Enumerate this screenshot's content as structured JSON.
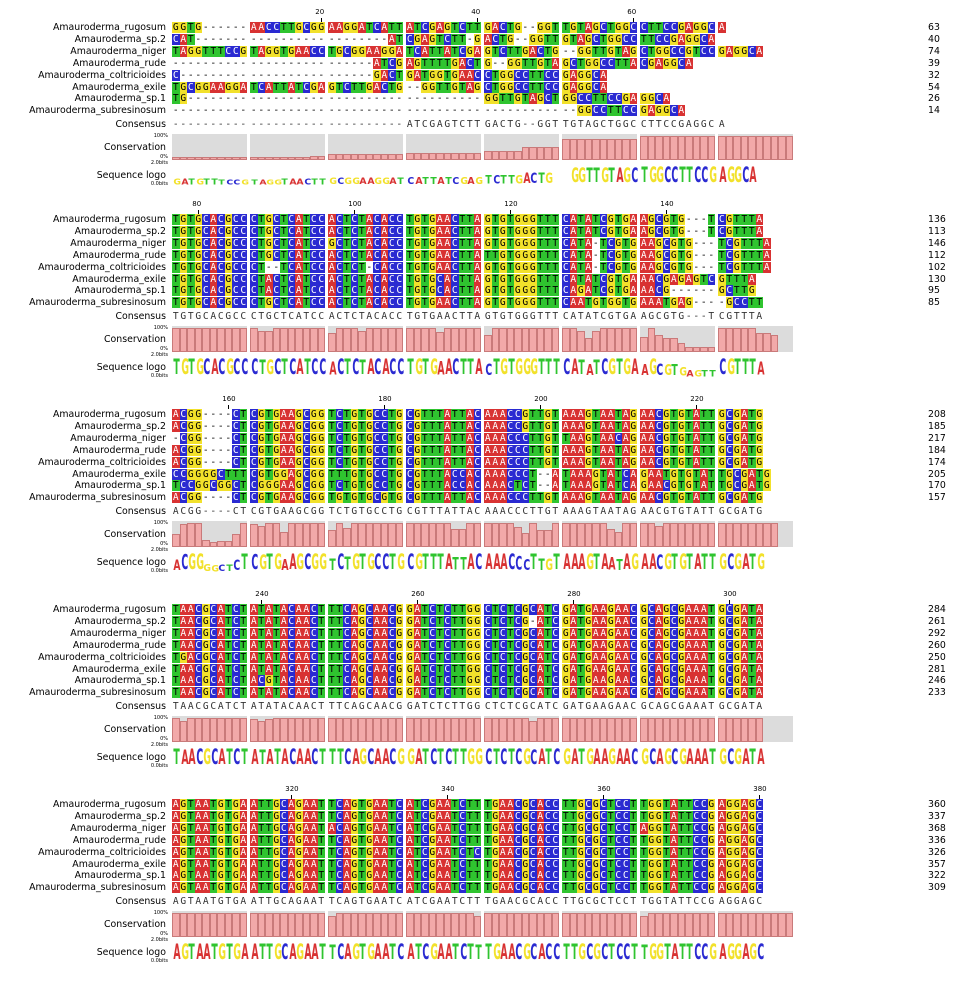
{
  "names": [
    "Amauroderma_rugosum",
    "Amauroderma_sp.2",
    "Amauroderma_niger",
    "Amauroderma_rude",
    "Amauroderma_coltricioides",
    "Amauroderma_exile",
    "Amauroderma_sp.1",
    "Amauroderma_subresinosum"
  ],
  "labels": {
    "consensus": "Consensus",
    "conservation": "Conservation",
    "logo": "Sequence logo",
    "pct100": "100%",
    "pct0": "0%",
    "bits": "2.0bits",
    "bits0": "0.0bits"
  },
  "colors": {
    "A": "#d83232",
    "C": "#2a2ad1",
    "G": "#f2e12b",
    "T": "#2fc42f"
  },
  "blocks": [
    {
      "ticks": [
        20,
        40,
        60
      ],
      "seqs": [
        "GGTG------AACCTTGCGGAAGGATCATTATCGAGTCTTGACTG--GGTTGTAGCTGGCCTTCCGAGGCA",
        "CAT-------------------------ATCGAGTCTT-GACTG--GGTTGTAGCTGGCCTTCCGAGGCA",
        "TAGGTTTCCGTAGGTGAACCTGCGGAAGGATCATTATCGAGTCTTGACTG--GGTTGTAGCTGGCCGTCCGAGGCA",
        "--------------------------ATCGAGTTTTGACTG--GGTTGTAGCTGGCCTTACGAGGCA",
        "C-------------------------GACTGATGGTGAACCTGGCCTTCCGAGGCA",
        "TGCGGAAGGATCATTATCGAGTCTTGACTG--GGTTGTAGCTGGCCTTCCGAGGCA",
        "TG--------------------------------------GGTTGTAGCTGGCCTTCCGAGGCA",
        "----------------------------------------------------GGCCTTCCGAGGCA"
      ],
      "ends": [
        63,
        40,
        74,
        39,
        32,
        54,
        26,
        14
      ],
      "consensus": "------------------------------ATCGAGTCTTGACTG--GGTTGTAGCTGGCCTTCCGAGGCA",
      "logo": "GATGTTTCCGTAGGTAACTTGCGGAAGGATCATTATCGAGTCTTGACTG--GGTTGTAGCTGGCCTTCCGAGGCA",
      "conservation": [
        15,
        15,
        15,
        15,
        15,
        15,
        12,
        12,
        12,
        12,
        12,
        12,
        12,
        12,
        15,
        15,
        14,
        15,
        18,
        16,
        25,
        25,
        25,
        25,
        25,
        25,
        25,
        25,
        25,
        25,
        30,
        30,
        30,
        30,
        30,
        30,
        30,
        30,
        30,
        30,
        40,
        40,
        40,
        40,
        40,
        55,
        55,
        55,
        55,
        55,
        90,
        90,
        90,
        90,
        90,
        90,
        90,
        90,
        90,
        90,
        100,
        100,
        100,
        100,
        100,
        100,
        100,
        100,
        100,
        100,
        100,
        100,
        100,
        100,
        100,
        100,
        100,
        100,
        100,
        100
      ]
    },
    {
      "ticks": [
        80,
        100,
        120,
        140
      ],
      "seqs": [
        "TGTGCACGCCCTGCTCATCCACTCTACACCTGTGAACTTAGTGTGGGTTTCATATCGTGAAGCGTG---TCGTTTA",
        "TGTGCACGCCCTGCTCATCCACTCTACACCTGTGAACTTAGTGTGGGTTTCATATCGTGAAGCGTG---TCGTTTA",
        "TGTGCACGCCCTGCTCATCCGCTCTACACCTGTGAACTTAGTGTGGGTTTCATA-TCGTGAAGCGTG---TCGTTTA",
        "TGTGCACGCCCTGCTCATCCACTCTACACCTGTGAACTTATTGTGGGTTTCATA-TCGTGAAGCGTG---TCGTTTA",
        "TGTGCACGCCCT--TCATCCACTCT-CACCTGTGAACTTAGTGTGGGTTTCATA-TCGTGAAGCGTG---TCGTTTA",
        "TGTGCACGCCCTACTCATCCACTCTACACCTGTGCACTTAGTGTGGGTTTCATATCGTGAAACGAGAGTCGTTTA",
        "TGTGCACGCCCTACTCATCCACTCTACACCTGTGCACTTAGTGTGGGTTTCAGATCGTGAAACG------GCTTG",
        "TGTGCACGCCCTGCTCATCCACTCTACACCTGTGAACTTAGTGTGGGTTTCAATGTGGTGAAATGAG----GCCTT"
      ],
      "ends": [
        136,
        113,
        146,
        112,
        102,
        130,
        95,
        85
      ],
      "consensus": "TGTGCACGCCCTGCTCATCCACTCTACACCTGTGAACTTAGTGTGGGTTTCATATCGTGAAGCGTG---TCGTTTA",
      "logo": "TGTGCACGCCCTGCTCATCCACTCTACACCTGTGAACTTACTGTGGGTTTCATATCGTGAAGCGTGAGTTCGTTTA",
      "conservation": [
        100,
        100,
        100,
        100,
        100,
        100,
        100,
        100,
        100,
        100,
        100,
        90,
        90,
        100,
        100,
        100,
        100,
        100,
        100,
        100,
        80,
        100,
        100,
        100,
        90,
        100,
        100,
        100,
        100,
        100,
        100,
        100,
        100,
        100,
        85,
        100,
        100,
        100,
        100,
        100,
        70,
        100,
        100,
        100,
        100,
        100,
        100,
        100,
        100,
        100,
        100,
        100,
        90,
        60,
        90,
        100,
        100,
        100,
        100,
        100,
        65,
        100,
        70,
        60,
        60,
        40,
        20,
        20,
        20,
        20,
        100,
        100,
        100,
        100,
        100,
        80,
        80,
        70
      ]
    },
    {
      "ticks": [
        160,
        180,
        200,
        220
      ],
      "seqs": [
        "ACGG----CTCGTGAAGCGGTCTGTGCCTGCGTTTATTACAAACCGTTGTAAAGTAATAGAACGTGTATTGCGATG",
        "ACGG----CTCGTGAAGCGGTCTGTGCCTGCGTTTATTACAAACCGTTGTAAAGTAATAGAACGTGTATTGCGATG",
        "-CGG----CTCGTGAAGCGGTCTGTGCCTGCGTTTATTACAAACCCTTGTTAAGTAACAGAACGTGTATTGCGATG",
        "ACGG----CTCGTGAAGCGGTCTGTGCCTGCGTTTATTACAAACCCTTGTAAAGTAATAGAACGTGTATTGCGATG",
        "ACGG----CTCGTGAAGCGGTCTGTGCCTGCGTTTATTACAAACCCTTGTAAAGTAATAGAACGTGTATTGCGATG",
        "CCGGGGCTTTCGTGGAGCGGTTTGTGCCTGCGTTTACCACAAACCCT--ATAAAGTATCAGAATGTGTATTGCGATG",
        "TCCGGCGGCTCGGGAAGCGGTCTGTGCCTGCGTTTACCACAAACTCT--ATAAAGTATCAGAACGTGTATTGCGATG",
        "ACGG----CTCGTGAAGCGGTGTGTGCGTGCGTTTATTACAAACCCTTGTAAAGTAATAGAACGTGTATTGCGATG"
      ],
      "ends": [
        208,
        185,
        217,
        184,
        174,
        205,
        170,
        157
      ],
      "consensus": "ACGG----CTCGTGAAGCGGTCTGTGCCTGCGTTTATTACAAACCCTTGTAAAGTAATAGAACGTGTATTGCGATG",
      "logo": "ACGGGGCTCTCGTGAAGCGGTCTGTGCCTGCGTTTATTACAAACCCTTGTAAAGTAATAGAACGTGTATTGCGATG",
      "conservation": [
        55,
        95,
        100,
        100,
        30,
        20,
        25,
        25,
        55,
        100,
        95,
        90,
        100,
        100,
        65,
        100,
        100,
        100,
        100,
        100,
        70,
        100,
        80,
        100,
        100,
        100,
        100,
        100,
        100,
        100,
        100,
        100,
        100,
        100,
        100,
        100,
        75,
        75,
        100,
        100,
        100,
        100,
        100,
        100,
        85,
        60,
        100,
        70,
        70,
        100,
        100,
        100,
        100,
        100,
        100,
        100,
        75,
        65,
        100,
        100,
        100,
        100,
        90,
        100,
        100,
        100,
        100,
        100,
        100,
        100,
        100,
        100,
        100,
        100,
        100,
        100,
        100,
        100
      ]
    },
    {
      "ticks": [
        240,
        260,
        280,
        300
      ],
      "seqs": [
        "TAACGCATCTATATACAACTTTCAGCAACGGATCTCTTGGCTCTCGCATCGATGAAGAACGCAGCGAAATGCGATA",
        "TAACGCATCTATATACAACTTTCAGCAACGGATCTCTTGGCTCTCG-ATCGATGAAGAACGCAGCGAAATGCGATA",
        "TAACGCATCTATATACAACTTTCAGCAACGGATCTCTTGGCTCTCGCATCGATGAAGAACGCAGCGAAATGCGATA",
        "TAACGCATCTATATACAACTTTCAGCAACGGATCTCTTGGCTCTCGCATCGATGAAGAACGCAGCGAAATGCGATA",
        "TGACGCATCTATATACAACTTTCAGCAACGGATCTCTTGGCTCTCGCATCGATGAAGAACGCAGCGAAATGCGATA",
        "TAACGCATCTATATACAACTTTCAGCAACGGATCTCTTGGCTCTCGCATCGATGAAGAACGCAGCGAAATGCGATA",
        "TAACGCATCTACGTACAACTTTCAGCAACGGATCTCTTGGCTCTCGCATCGATGAAGAACGCAGCGAAATGCGATA",
        "TAACGCATCTATATACAACTTTCAGCAACGGATCTCTTGGCTCTCGCATCGATGAAGAACGCAGCGAAATGCGATA"
      ],
      "ends": [
        284,
        261,
        292,
        260,
        250,
        281,
        246,
        233
      ],
      "consensus": "TAACGCATCTATATACAACTTTCAGCAACGGATCTCTTGGCTCTCGCATCGATGAAGAACGCAGCGAAATGCGATA",
      "logo": "TAACGCATCTATATACAACTTTCAGCAACGGATCTCTTGGCTCTCGCATCGATGAAGAACGCAGCGAAATGCGATA",
      "conservation": [
        100,
        90,
        100,
        100,
        100,
        100,
        100,
        100,
        100,
        100,
        95,
        90,
        95,
        100,
        100,
        100,
        100,
        100,
        100,
        100,
        100,
        100,
        100,
        100,
        100,
        100,
        100,
        100,
        100,
        100,
        100,
        100,
        100,
        100,
        100,
        100,
        100,
        100,
        100,
        100,
        100,
        100,
        100,
        100,
        100,
        100,
        90,
        100,
        100,
        100,
        100,
        100,
        100,
        100,
        100,
        100,
        100,
        100,
        100,
        100,
        100,
        100,
        100,
        100,
        100,
        100,
        100,
        100,
        100,
        100,
        100,
        100,
        100,
        100,
        100,
        100
      ]
    },
    {
      "ticks": [
        320,
        340,
        360,
        380
      ],
      "seqs": [
        "AGTAATGTGAATTGCAGAATTCAGTGAATCATCGAATCTTTGAACGCACCTTGCGCTCCTTGGTATTCCGAGGAGC",
        "AGTAATGTGAATTGCAGAATTCAGTGAATCATCGAATCTTTGAACGCACCTTGCGCTCCTTGGTATTCCGAGGAGC",
        "AGTAATGTGAATTGCAGAATACAGTGAATCATCGAATCTTTGAACGCACCTTGCGCTCCTAGGTATTCCGAGGAGC",
        "AGTAATGTGAATTGCAGAATTCAGTGAATCATCGAATCTTTGAACGCACCTTGCGCTCCTTGGTATTCCGAGGAGC",
        "AGTAATGTGAATTGCAGAATTCAGTGAATCATCGAATCTCTGAACGCACCTTGCGCTCCTTGGTATTCCGAGGAGC",
        "AGTAATGTGAATTGCAGAATTCAGTGAATCATCGAATCTTTGAACGCACCTTGCGCTCCTTGGTATTCCGAGGAGC",
        "AGTAATGTGAATTGCAGAATTCAGTGAATCATCGAATCTTTGAACGCACCTTGCGCTCCTTGGTATTCCGAGGAGC",
        "AGTAATGTGAATTGCAGAATTCAGTGAATCATCGAATCTTTGAACGCACCTTGCGCTCCTTGGTATTCCGAGGAGC"
      ],
      "ends": [
        360,
        337,
        368,
        336,
        326,
        357,
        322,
        309
      ],
      "consensus": "AGTAATGTGAATTGCAGAATTCAGTGAATCATCGAATCTTTGAACGCACCTTGCGCTCCTTGGTATTCCGAGGAGC",
      "logo": "AGTAATGTGAATTGCAGAATTCAGTGAATCATCGAATCTTTGAACGCACCTTGCGCTCCTTGGTATTCCGAGGAGC",
      "conservation": [
        100,
        100,
        100,
        100,
        100,
        100,
        100,
        100,
        100,
        100,
        100,
        100,
        100,
        100,
        100,
        100,
        100,
        100,
        100,
        100,
        90,
        100,
        100,
        100,
        100,
        100,
        100,
        100,
        100,
        100,
        100,
        100,
        100,
        100,
        100,
        100,
        100,
        100,
        100,
        90,
        100,
        100,
        100,
        100,
        100,
        100,
        100,
        100,
        100,
        100,
        100,
        100,
        100,
        100,
        100,
        100,
        100,
        100,
        100,
        100,
        90,
        100,
        100,
        100,
        100,
        100,
        100,
        100,
        100,
        100,
        100,
        100,
        100,
        100,
        100,
        100,
        100,
        100,
        100,
        100
      ]
    }
  ]
}
